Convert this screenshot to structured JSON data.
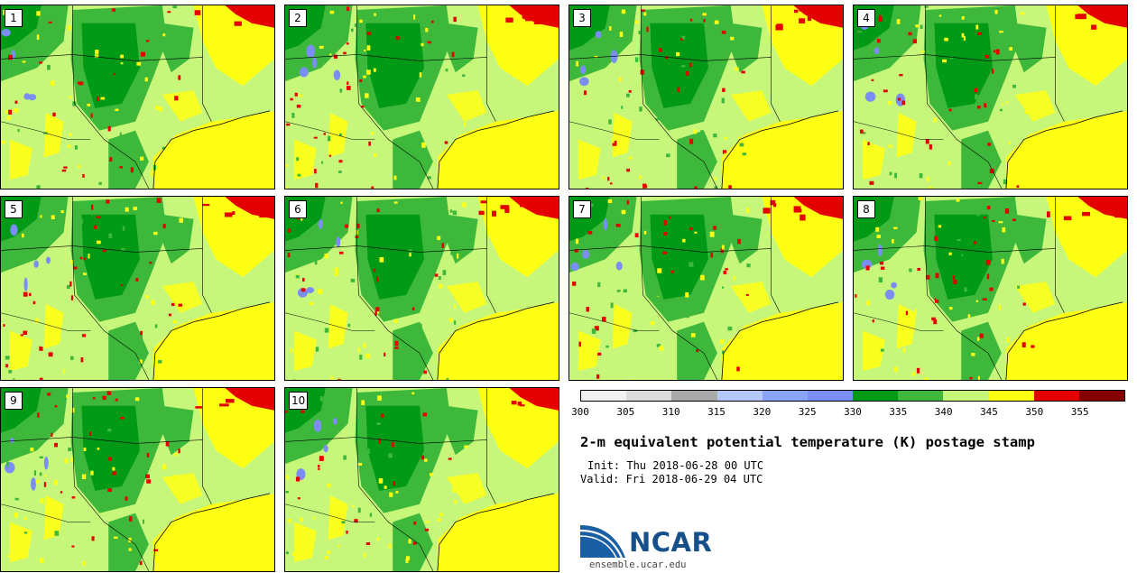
{
  "panels": [
    "1",
    "2",
    "3",
    "4",
    "5",
    "6",
    "7",
    "8",
    "9",
    "10"
  ],
  "colorbar": {
    "colors": [
      "#f2f2f2",
      "#dcdcdc",
      "#aaaaaa",
      "#b4c8f8",
      "#8aa4f8",
      "#7a8ef5",
      "#009a16",
      "#3eb83a",
      "#c7f77a",
      "#ffff14",
      "#e50000",
      "#850000"
    ],
    "ticks": [
      "300",
      "305",
      "310",
      "315",
      "320",
      "325",
      "330",
      "335",
      "340",
      "345",
      "350",
      "355"
    ]
  },
  "title": "2-m equivalent potential temperature (K) postage stamp",
  "init": "Init: Thu 2018-06-28 00 UTC",
  "valid": "Valid: Fri 2018-06-29 04 UTC",
  "logo": {
    "name": "NCAR",
    "site": "ensemble.ucar.edu",
    "color": "#16508a"
  }
}
